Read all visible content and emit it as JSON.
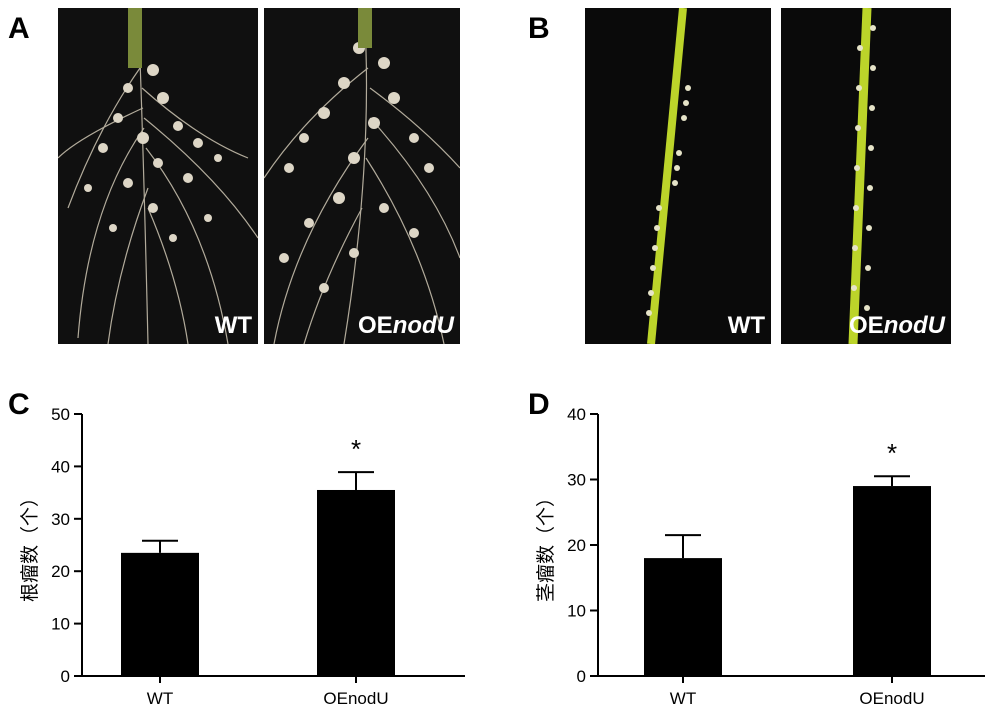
{
  "panels": {
    "a": {
      "letter": "A",
      "left_prefix": "WT",
      "right_prefix": "OE",
      "right_italic": "nodU"
    },
    "b": {
      "letter": "B",
      "left_prefix": "WT",
      "right_prefix": "OE",
      "right_italic": "nodU"
    },
    "c": {
      "letter": "C"
    },
    "d": {
      "letter": "D"
    }
  },
  "chart_data": [
    {
      "type": "bar",
      "panel": "C",
      "categories": [
        "WT",
        "OEnodU"
      ],
      "values": [
        23.5,
        35.5
      ],
      "errors": [
        2.3,
        3.4
      ],
      "significance": [
        "",
        "*"
      ],
      "ylabel": "根瘤数（个）",
      "xlabel": "",
      "ylim": [
        0,
        50
      ],
      "yticks": [
        0,
        10,
        20,
        30,
        40,
        50
      ],
      "bar_color": "#000000"
    },
    {
      "type": "bar",
      "panel": "D",
      "categories": [
        "WT",
        "OEnodU"
      ],
      "values": [
        18.0,
        29.0
      ],
      "errors": [
        3.5,
        1.5
      ],
      "significance": [
        "",
        "*"
      ],
      "ylabel": "茎瘤数（个）",
      "xlabel": "",
      "ylim": [
        0,
        40
      ],
      "yticks": [
        0,
        10,
        20,
        30,
        40
      ],
      "bar_color": "#000000"
    }
  ]
}
